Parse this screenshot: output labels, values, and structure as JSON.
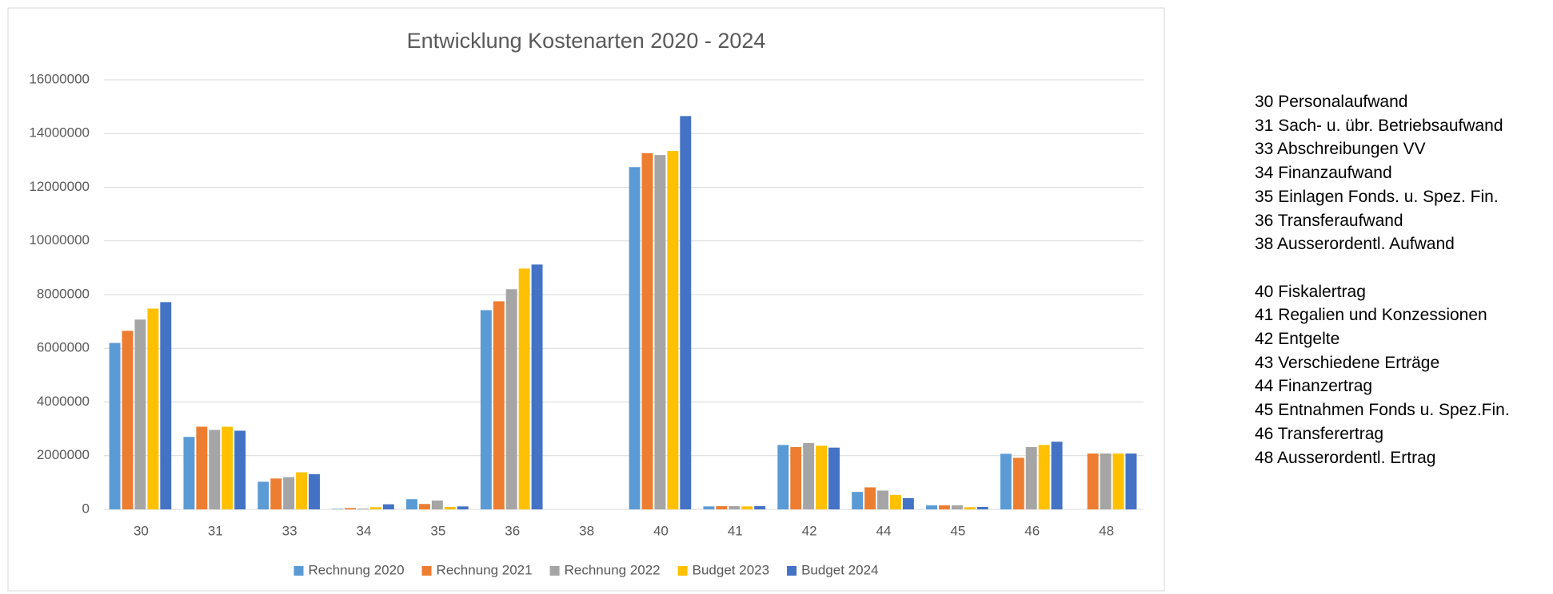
{
  "chart_data": {
    "type": "bar",
    "title": "Entwicklung Kostenarten 2020 - 2024",
    "categories": [
      "30",
      "31",
      "33",
      "34",
      "35",
      "36",
      "38",
      "40",
      "41",
      "42",
      "44",
      "45",
      "46",
      "48"
    ],
    "series": [
      {
        "name": "Rechnung 2020",
        "color": "#5b9bd5",
        "values": [
          6200000,
          2700000,
          1030000,
          20000,
          380000,
          7420000,
          0,
          12750000,
          110000,
          2400000,
          650000,
          150000,
          2070000,
          null
        ]
      },
      {
        "name": "Rechnung 2021",
        "color": "#ed7d31",
        "values": [
          6650000,
          3080000,
          1150000,
          50000,
          200000,
          7750000,
          0,
          13270000,
          120000,
          2320000,
          820000,
          150000,
          1920000,
          2080000
        ]
      },
      {
        "name": "Rechnung 2022",
        "color": "#a5a5a5",
        "values": [
          7070000,
          2960000,
          1200000,
          30000,
          330000,
          8200000,
          0,
          13200000,
          120000,
          2470000,
          700000,
          150000,
          2320000,
          2080000
        ]
      },
      {
        "name": "Budget 2023",
        "color": "#ffc000",
        "values": [
          7480000,
          3080000,
          1380000,
          80000,
          90000,
          8970000,
          0,
          13350000,
          110000,
          2370000,
          540000,
          80000,
          2400000,
          2080000
        ]
      },
      {
        "name": "Budget 2024",
        "color": "#4472c4",
        "values": [
          7720000,
          2930000,
          1310000,
          190000,
          110000,
          9120000,
          0,
          14650000,
          120000,
          2300000,
          420000,
          90000,
          2520000,
          2080000
        ]
      }
    ],
    "ylim": [
      0,
      16000000
    ],
    "yticks": [
      0,
      2000000,
      4000000,
      6000000,
      8000000,
      10000000,
      12000000,
      14000000,
      16000000
    ],
    "grid": true,
    "legend": "bottom"
  },
  "notes": [
    [
      "30 Personalaufwand",
      "31 Sach- u. übr. Betriebsaufwand",
      "33 Abschreibungen VV",
      "34 Finanzaufwand",
      "35 Einlagen Fonds. u. Spez. Fin.",
      "36 Transferaufwand",
      "38 Ausserordentl. Aufwand"
    ],
    [
      "40 Fiskalertrag",
      "41 Regalien und Konzessionen",
      "42 Entgelte",
      "43 Verschiedene Erträge",
      "44 Finanzertrag",
      "45 Entnahmen Fonds u. Spez.Fin.",
      "46 Transferertrag",
      "48 Ausserordentl. Ertrag"
    ]
  ]
}
